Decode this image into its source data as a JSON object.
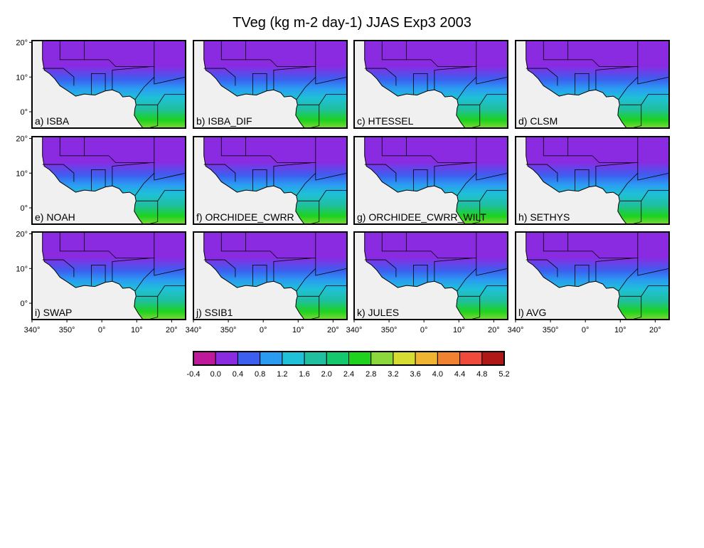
{
  "title": "TVeg (kg m-2 day-1) JJAS Exp3 2003",
  "map": {
    "lon_range": [
      -20,
      24
    ],
    "lat_range": [
      -4.7,
      20.5
    ],
    "lat_ticks": [
      {
        "value": 20,
        "label": "20°"
      },
      {
        "value": 10,
        "label": "10°"
      },
      {
        "value": 0,
        "label": "0°"
      }
    ],
    "lon_ticks": [
      {
        "value": -20,
        "label": "340°"
      },
      {
        "value": -10,
        "label": "350°"
      },
      {
        "value": 0,
        "label": "0°"
      },
      {
        "value": 10,
        "label": "10°"
      },
      {
        "value": 20,
        "label": "20°"
      }
    ],
    "panels": [
      "a) ISBA",
      "b) ISBA_DIF",
      "c) HTESSEL",
      "d) CLSM",
      "e) NOAH",
      "f) ORCHIDEE_CWRR",
      "g) ORCHIDEE_CWRR_WILT",
      "h) SETHYS",
      "i) SWAP",
      "j) SSIB1",
      "k) JULES",
      "l) AVG"
    ]
  },
  "colorbar": {
    "levels": [
      -0.4,
      {
        "value": 0,
        "label": "0.0"
      },
      0.4,
      0.8,
      1.2,
      1.6,
      {
        "value": 2,
        "label": "2.0"
      },
      2.4,
      2.8,
      3.2,
      3.6,
      {
        "value": 4,
        "label": "4.0"
      },
      4.4,
      4.8,
      5.2
    ],
    "colors": [
      "#c0189a",
      "#8a2be2",
      "#3c5ff0",
      "#2b9bf2",
      "#1fc0d8",
      "#1fbfa0",
      "#15c86e",
      "#1ed21e",
      "#8ad83c",
      "#d6dc32",
      "#f0b432",
      "#f08232",
      "#f04a3c",
      "#b01818"
    ]
  }
}
